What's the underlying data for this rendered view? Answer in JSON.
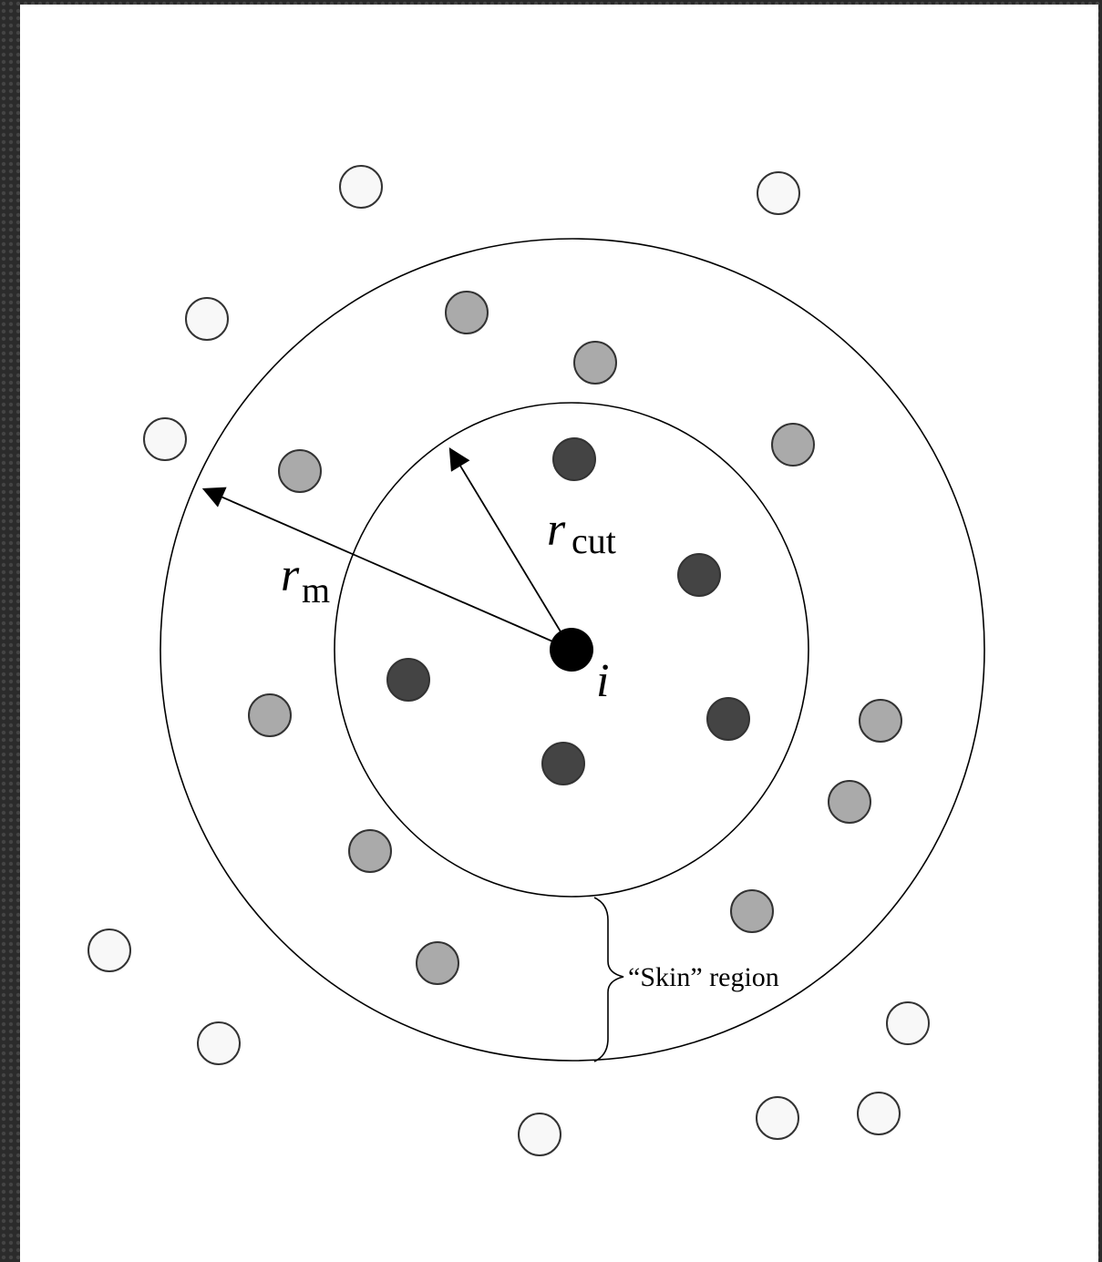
{
  "labels": {
    "outer_radius": {
      "symbol": "r",
      "subscript": "m"
    },
    "cutoff_radius": {
      "symbol": "r",
      "subscript": "cut"
    },
    "center_particle": "i",
    "skin": "“Skin” region"
  }
}
